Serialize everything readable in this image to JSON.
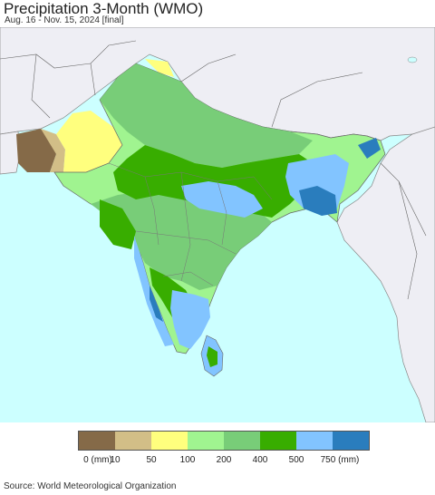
{
  "title": "Precipitation 3-Month (WMO)",
  "subtitle": "Aug. 16 - Nov. 15, 2024 [final]",
  "source": "Source: World Meteorological Organization",
  "colors": {
    "ocean": "#ccffff",
    "outside_land": "#eeeef4",
    "border": "#777777"
  },
  "legend": {
    "swatches": [
      "#856a48",
      "#d2be87",
      "#ffff7e",
      "#a0f490",
      "#78cd78",
      "#38ad00",
      "#82c4ff",
      "#2a7dbd"
    ],
    "labels": [
      "0 (mm)",
      "10",
      "50",
      "100",
      "200",
      "400",
      "500",
      "750 (mm)"
    ]
  }
}
